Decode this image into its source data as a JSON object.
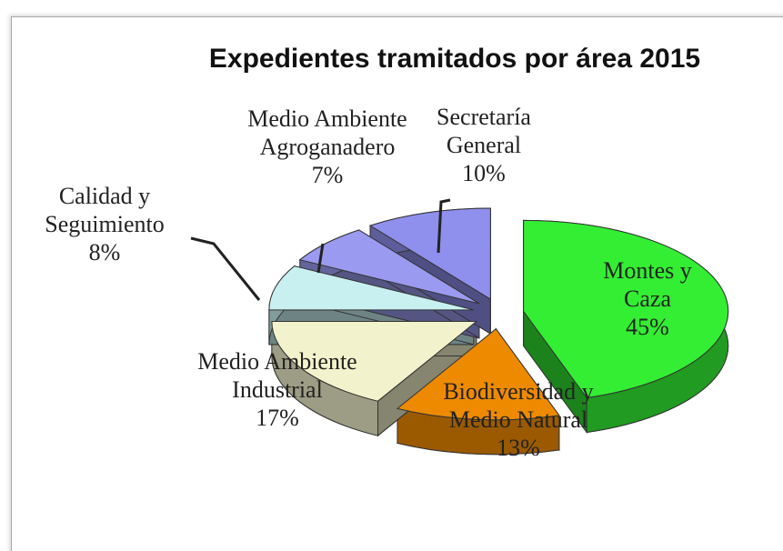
{
  "chart_data": {
    "type": "pie",
    "title": "Expedientes tramitados por área 2015",
    "categories": [
      "Montes y Caza",
      "Biodiversidad y Medio Natural",
      "Medio Ambiente Industrial",
      "Calidad y Seguimiento",
      "Medio Ambiente Agroganadero",
      "Secretaría General"
    ],
    "values": [
      45,
      13,
      17,
      8,
      7,
      10
    ],
    "value_labels": [
      "45%",
      "13%",
      "17%",
      "8%",
      "7%",
      "10%"
    ],
    "colors": [
      "#33ee33",
      "#ee8a00",
      "#f2f2cc",
      "#c8f0f0",
      "#9a9af0",
      "#8f8fee"
    ]
  }
}
